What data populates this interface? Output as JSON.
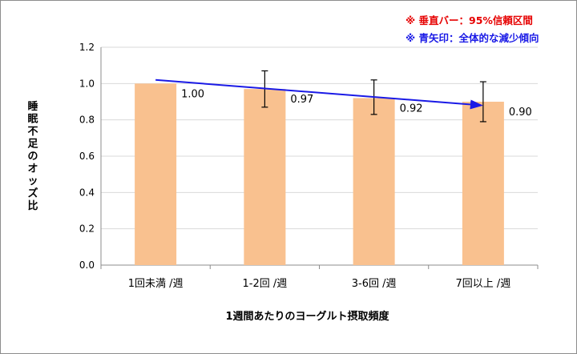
{
  "chart_data": {
    "type": "bar",
    "categories": [
      "1回未満 /週",
      "1-2回 /週",
      "3-6回 /週",
      "7回以上 /週"
    ],
    "values": [
      1.0,
      0.97,
      0.92,
      0.9
    ],
    "value_labels": [
      "1.00",
      "0.97",
      "0.92",
      "0.90"
    ],
    "error_low": [
      null,
      0.87,
      0.83,
      0.79
    ],
    "error_high": [
      null,
      1.07,
      1.02,
      1.01
    ],
    "trend_arrow": {
      "from": 1.02,
      "to": 0.88
    },
    "xlabel": "1週間あたりのヨーグルト摂取頻度",
    "ylabel": "睡眠不足のオッズ比",
    "ylim": [
      0,
      1.2
    ],
    "yticks": [
      "0.0",
      "0.2",
      "0.4",
      "0.6",
      "0.8",
      "1.0",
      "1.2"
    ],
    "grid": true,
    "colors": {
      "bar": "#f9c18f",
      "grid": "#d9d9d9",
      "error": "#000000",
      "arrow": "#1a1ae6"
    }
  },
  "notes": {
    "error_bar_note": "※ 垂直バー：95%信頼区間",
    "arrow_note": "※ 青矢印：全体的な減少傾向"
  }
}
